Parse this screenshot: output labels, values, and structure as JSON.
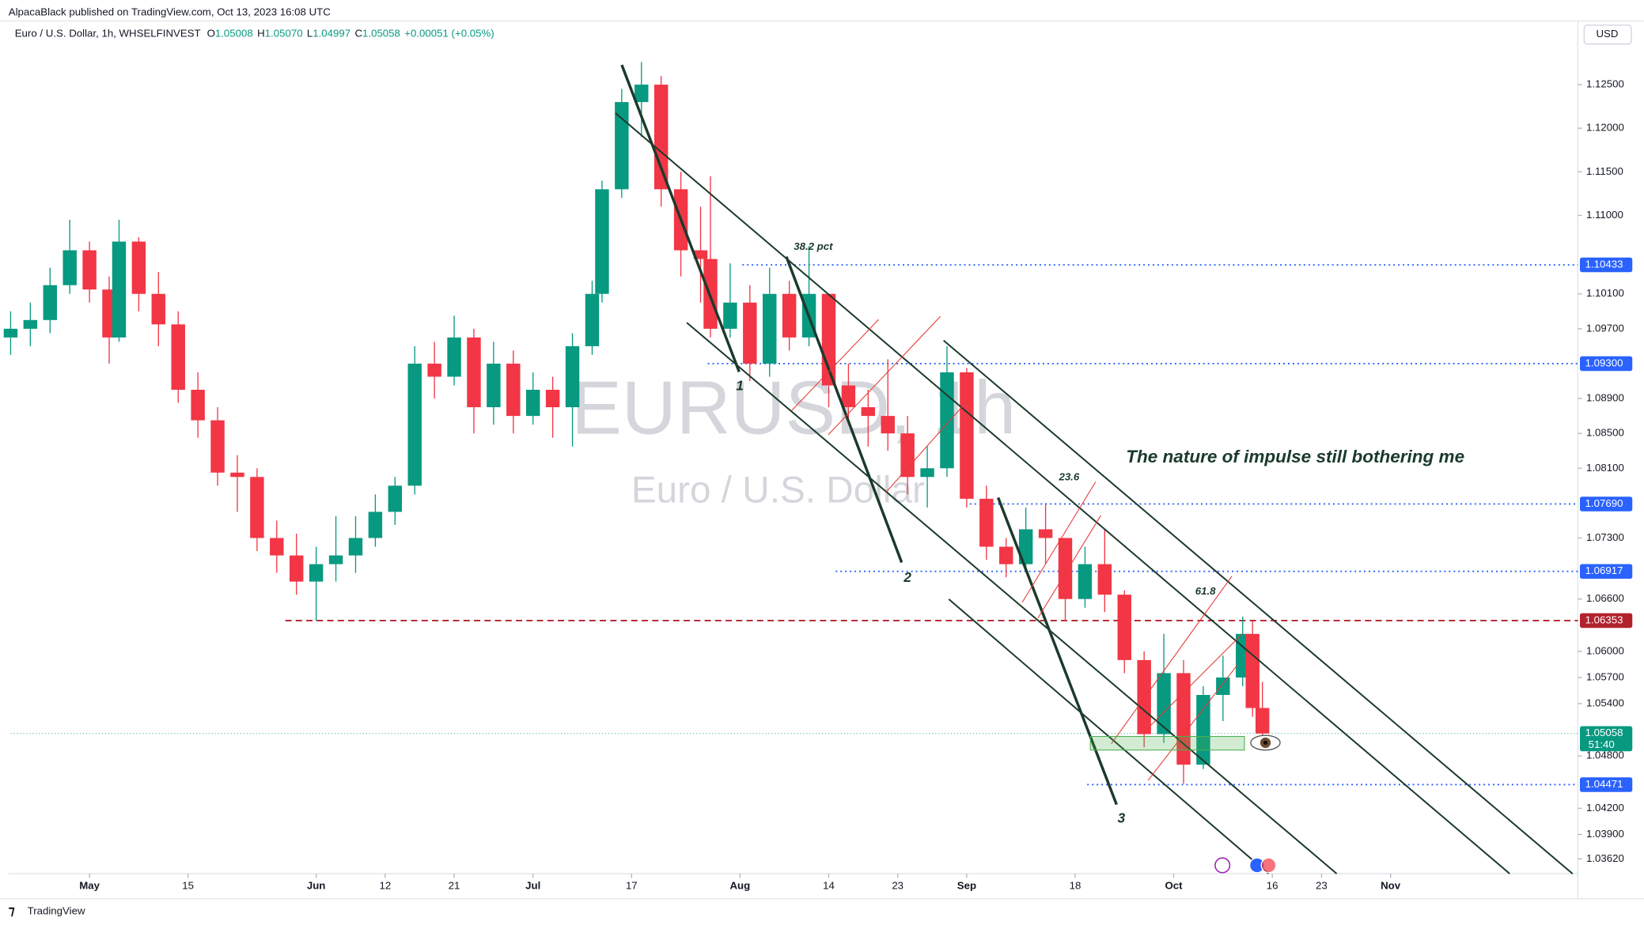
{
  "header": {
    "publisher": "AlpacaBlack published on TradingView.com, Oct 13, 2023 16:08 UTC",
    "brand": "TradingView"
  },
  "chart_data": {
    "type": "candlestick",
    "symbol": "Euro / U.S. Dollar, 1h, WHSELFINVEST",
    "ohlc_legend": [
      {
        "label": "O",
        "value": "1.05008"
      },
      {
        "label": "H",
        "value": "1.05070"
      },
      {
        "label": "L",
        "value": "1.04997"
      },
      {
        "label": "C",
        "value": "1.05058"
      }
    ],
    "change": "+0.00051 (+0.05%)",
    "currency": "USD",
    "watermark": "EURUSD, 1h",
    "watermark_subtitle": "Euro / U.S. Dollar",
    "x": [
      "2023-04-19",
      "2023-04-21",
      "2023-04-25",
      "2023-04-27",
      "2023-05-01",
      "2023-05-03",
      "2023-05-04",
      "2023-05-08",
      "2023-05-10",
      "2023-05-12",
      "2023-05-16",
      "2023-05-18",
      "2023-05-22",
      "2023-05-24",
      "2023-05-26",
      "2023-05-30",
      "2023-06-01",
      "2023-06-05",
      "2023-06-07",
      "2023-06-09",
      "2023-06-13",
      "2023-06-15",
      "2023-06-19",
      "2023-06-21",
      "2023-06-23",
      "2023-06-27",
      "2023-06-29",
      "2023-07-03",
      "2023-07-05",
      "2023-07-07",
      "2023-07-11",
      "2023-07-12",
      "2023-07-14",
      "2023-07-18",
      "2023-07-20",
      "2023-07-24",
      "2023-07-26",
      "2023-07-27",
      "2023-07-31",
      "2023-08-02",
      "2023-08-04",
      "2023-08-08",
      "2023-08-10",
      "2023-08-14",
      "2023-08-16",
      "2023-08-18",
      "2023-08-22",
      "2023-08-24",
      "2023-08-28",
      "2023-08-30",
      "2023-09-01",
      "2023-09-05",
      "2023-09-07",
      "2023-09-11",
      "2023-09-13",
      "2023-09-15",
      "2023-09-19",
      "2023-09-21",
      "2023-09-25",
      "2023-09-27",
      "2023-09-29",
      "2023-10-03",
      "2023-10-05",
      "2023-10-09",
      "2023-10-11",
      "2023-10-12",
      "2023-10-13"
    ],
    "open": [
      1.096,
      1.097,
      1.098,
      1.102,
      1.106,
      1.1015,
      1.096,
      1.107,
      1.101,
      1.0975,
      1.09,
      1.0865,
      1.0805,
      1.08,
      1.073,
      1.071,
      1.068,
      1.07,
      1.071,
      1.073,
      1.076,
      1.079,
      1.093,
      1.0915,
      1.096,
      1.088,
      1.093,
      1.087,
      1.09,
      1.088,
      1.095,
      1.101,
      1.113,
      1.123,
      1.125,
      1.113,
      1.106,
      1.105,
      1.097,
      1.1,
      1.093,
      1.101,
      1.096,
      1.101,
      1.0905,
      1.088,
      1.087,
      1.085,
      1.08,
      1.081,
      1.092,
      1.0775,
      1.072,
      1.07,
      1.074,
      1.073,
      1.066,
      1.07,
      1.0665,
      1.059,
      1.0505,
      1.0575,
      1.047,
      1.055,
      1.057,
      1.062,
      1.0535
    ],
    "high": [
      1.099,
      1.1,
      1.104,
      1.1095,
      1.107,
      1.103,
      1.1095,
      1.1075,
      1.1035,
      1.099,
      1.092,
      1.088,
      1.0825,
      1.081,
      1.075,
      1.0735,
      1.072,
      1.0755,
      1.0755,
      1.078,
      1.08,
      1.095,
      1.0955,
      1.0985,
      1.097,
      1.0955,
      1.0945,
      1.092,
      1.0915,
      1.0965,
      1.1025,
      1.114,
      1.1245,
      1.1276,
      1.126,
      1.115,
      1.111,
      1.1145,
      1.1045,
      1.102,
      1.104,
      1.1025,
      1.1065,
      1.101,
      1.093,
      1.09,
      1.0935,
      1.087,
      1.0835,
      1.095,
      1.0925,
      1.079,
      1.073,
      1.0765,
      1.077,
      1.073,
      1.072,
      1.074,
      1.067,
      1.06,
      1.062,
      1.059,
      1.056,
      1.0595,
      1.064,
      1.0635,
      1.0565
    ],
    "low": [
      1.094,
      1.095,
      1.0965,
      1.101,
      1.1,
      1.093,
      1.0955,
      1.099,
      1.095,
      1.0885,
      1.0845,
      1.079,
      1.076,
      1.0715,
      1.069,
      1.0665,
      1.0635,
      1.068,
      1.069,
      1.072,
      1.0745,
      1.078,
      1.089,
      1.0905,
      1.085,
      1.086,
      1.085,
      1.086,
      1.0845,
      1.0835,
      1.094,
      1.1,
      1.112,
      1.119,
      1.111,
      1.103,
      1.1,
      1.096,
      1.096,
      1.091,
      1.0915,
      1.0945,
      1.095,
      1.088,
      1.086,
      1.0835,
      1.083,
      1.078,
      1.0765,
      1.08,
      1.0765,
      1.0705,
      1.0685,
      1.0695,
      1.07,
      1.0635,
      1.065,
      1.0645,
      1.0575,
      1.049,
      1.0495,
      1.0448,
      1.0465,
      1.052,
      1.056,
      1.0525,
      1.0497
    ],
    "close": [
      1.097,
      1.098,
      1.102,
      1.106,
      1.1015,
      1.096,
      1.107,
      1.101,
      1.0975,
      1.09,
      1.0865,
      1.0805,
      1.08,
      1.073,
      1.071,
      1.068,
      1.07,
      1.071,
      1.073,
      1.076,
      1.079,
      1.093,
      1.0915,
      1.096,
      1.088,
      1.093,
      1.087,
      1.09,
      1.088,
      1.095,
      1.101,
      1.113,
      1.123,
      1.125,
      1.113,
      1.106,
      1.105,
      1.097,
      1.1,
      1.093,
      1.101,
      1.096,
      1.101,
      1.0905,
      1.088,
      1.087,
      1.085,
      1.08,
      1.081,
      1.092,
      1.0775,
      1.072,
      1.07,
      1.074,
      1.073,
      1.066,
      1.07,
      1.0665,
      1.059,
      1.0505,
      1.0575,
      1.047,
      1.055,
      1.057,
      1.062,
      1.0535,
      1.05058
    ],
    "up_color": "#089981",
    "down_color": "#f23645",
    "xlim": [
      "2023-04-19",
      "2023-11-28"
    ],
    "xticks": [
      {
        "value": "2023-05-01",
        "label": "May"
      },
      {
        "value": "2023-05-15",
        "label": "15"
      },
      {
        "value": "2023-06-01",
        "label": "Jun"
      },
      {
        "value": "2023-06-12",
        "label": "12"
      },
      {
        "value": "2023-06-21",
        "label": "21"
      },
      {
        "value": "2023-07-03",
        "label": "Jul"
      },
      {
        "value": "2023-07-17",
        "label": "17"
      },
      {
        "value": "2023-08-01",
        "label": "Aug"
      },
      {
        "value": "2023-08-14",
        "label": "14"
      },
      {
        "value": "2023-08-23",
        "label": "23"
      },
      {
        "value": "2023-09-01",
        "label": "Sep"
      },
      {
        "value": "2023-09-18",
        "label": "18"
      },
      {
        "value": "2023-10-02",
        "label": "Oct"
      },
      {
        "value": "2023-10-16",
        "label": "16"
      },
      {
        "value": "2023-10-23",
        "label": "23"
      },
      {
        "value": "2023-11-01",
        "label": "Nov"
      }
    ],
    "ylim": [
      1.0345,
      1.1293
    ],
    "yticks": [
      {
        "value": 1.125,
        "label": "1.12500"
      },
      {
        "value": 1.12,
        "label": "1.12000"
      },
      {
        "value": 1.115,
        "label": "1.11500"
      },
      {
        "value": 1.11,
        "label": "1.11000"
      },
      {
        "value": 1.101,
        "label": "1.10100"
      },
      {
        "value": 1.097,
        "label": "1.09700"
      },
      {
        "value": 1.089,
        "label": "1.08900"
      },
      {
        "value": 1.085,
        "label": "1.08500"
      },
      {
        "value": 1.081,
        "label": "1.08100"
      },
      {
        "value": 1.073,
        "label": "1.07300"
      },
      {
        "value": 1.066,
        "label": "1.06600"
      },
      {
        "value": 1.06,
        "label": "1.06000"
      },
      {
        "value": 1.057,
        "label": "1.05700"
      },
      {
        "value": 1.054,
        "label": "1.05400"
      },
      {
        "value": 1.048,
        "label": "1.04800"
      },
      {
        "value": 1.042,
        "label": "1.04200"
      },
      {
        "value": 1.039,
        "label": "1.03900"
      },
      {
        "value": 1.0362,
        "label": "1.03620"
      }
    ],
    "levels": [
      {
        "value": 1.10433,
        "label": "1.10433",
        "color": "#2962ff"
      },
      {
        "value": 1.093,
        "label": "1.09300",
        "color": "#2962ff"
      },
      {
        "value": 1.0769,
        "label": "1.07690",
        "color": "#2962ff"
      },
      {
        "value": 1.06917,
        "label": "1.06917",
        "color": "#2962ff"
      },
      {
        "value": 1.06353,
        "label": "1.06353",
        "color": "#b2222c"
      },
      {
        "value": 1.04471,
        "label": "1.04471",
        "color": "#2962ff"
      },
      {
        "value": 1.05058,
        "label": "1.05058",
        "color": "#089981"
      }
    ],
    "countdown": "51:40",
    "annotations": [
      "38.2 pct",
      "23.6",
      "61.8",
      "1",
      "2",
      "3",
      "The nature of impulse still bothering me"
    ]
  }
}
